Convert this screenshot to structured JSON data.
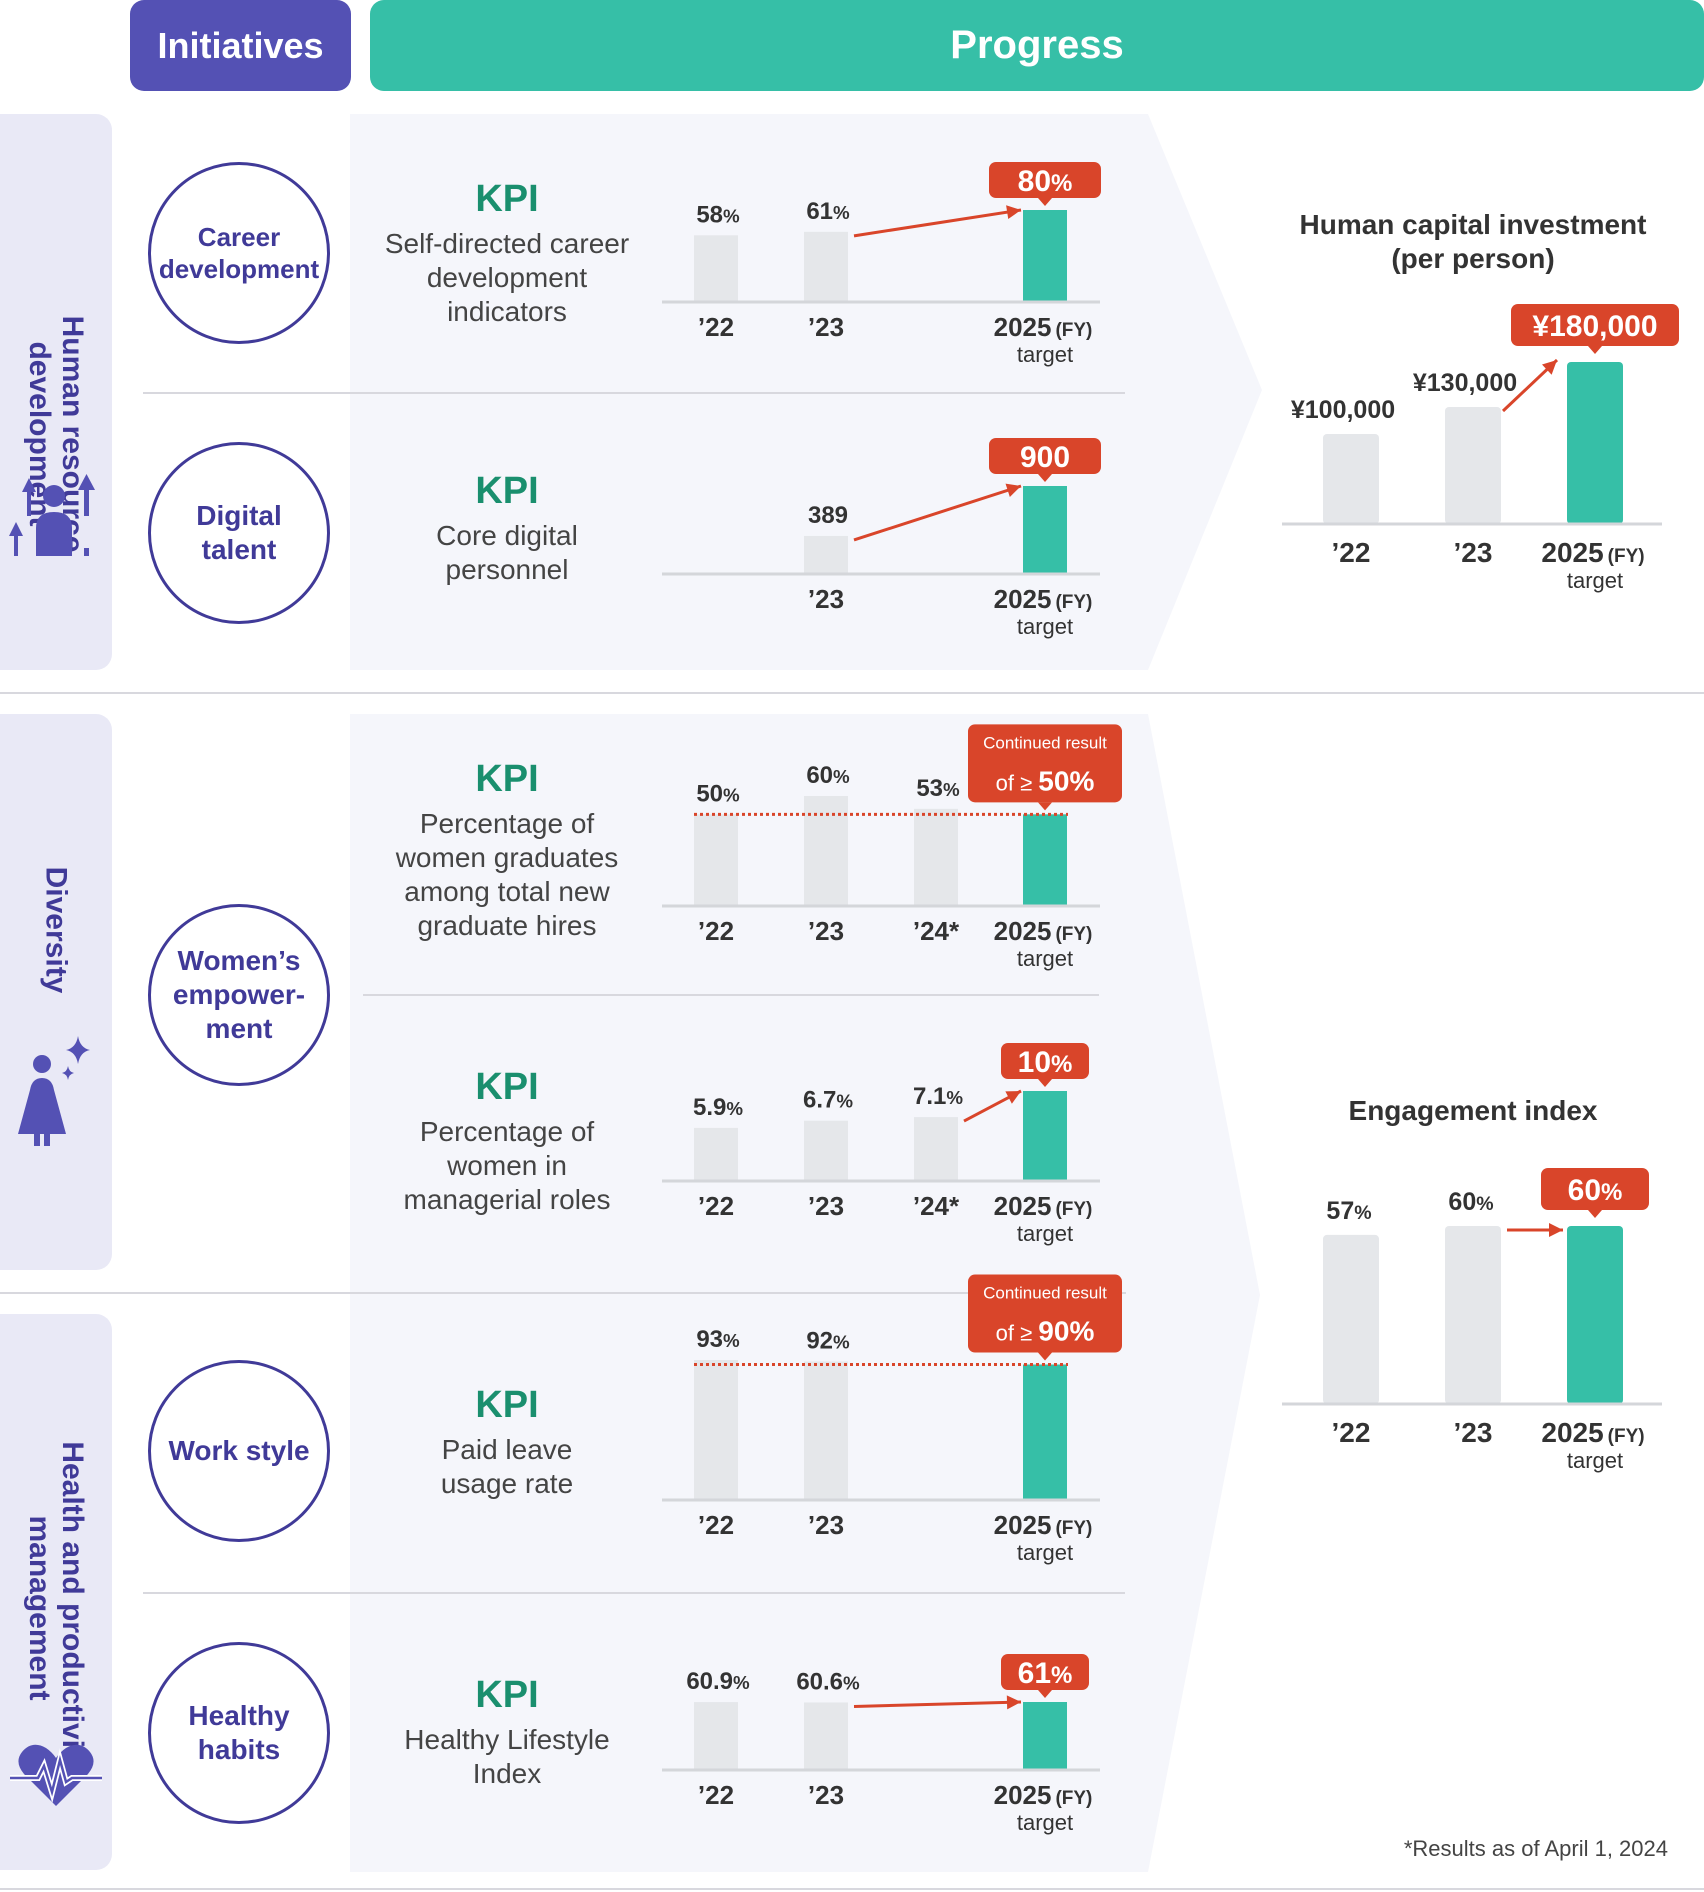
{
  "header": {
    "initiatives": "Initiatives",
    "progress": "Progress"
  },
  "colors": {
    "purple": "#5451b4",
    "teal": "#36bfa7",
    "gray_bar": "#e5e7ea",
    "red": "#d9452a",
    "label_purple": "#403a98",
    "kpi_green": "#1a8f6e"
  },
  "sections": [
    {
      "label": "Human resource\ndevelopment",
      "icon": "person-growth-icon"
    },
    {
      "label": "Diversity",
      "icon": "woman-sparkle-icon"
    },
    {
      "label": "Health and productivity\nmanagement",
      "icon": "heart-pulse-icon"
    }
  ],
  "initiatives": [
    {
      "name": "Career\ndevelopment"
    },
    {
      "name": "Digital\ntalent"
    },
    {
      "name": "Women’s\nempower-\nment"
    },
    {
      "name": "Work style"
    },
    {
      "name": "Healthy\nhabits"
    }
  ],
  "kpis": [
    {
      "title": "KPI",
      "desc": "Self-directed career\ndevelopment\nindicators"
    },
    {
      "title": "KPI",
      "desc": "Core digital\npersonnel"
    },
    {
      "title": "KPI",
      "desc": "Percentage of\nwomen graduates\namong total new\ngraduate hires"
    },
    {
      "title": "KPI",
      "desc": "Percentage of\nwomen in\nmanagerial roles"
    },
    {
      "title": "KPI",
      "desc": "Paid leave\nusage rate"
    },
    {
      "title": "KPI",
      "desc": "Healthy Lifestyle\nIndex"
    }
  ],
  "chart_data": [
    {
      "type": "bar",
      "categories": [
        "’22",
        "’23",
        "2025"
      ],
      "values": [
        58,
        61,
        80
      ],
      "value_labels": [
        "58%",
        "61%",
        "80%"
      ],
      "target_label": "80%",
      "target_note": "target",
      "fy_label": "(FY)",
      "ylim": [
        0,
        100
      ]
    },
    {
      "type": "bar",
      "categories": [
        "’23",
        "2025"
      ],
      "values": [
        389,
        900
      ],
      "value_labels": [
        "389",
        "900"
      ],
      "target_label": "900",
      "target_note": "target",
      "fy_label": "(FY)",
      "ylim": [
        0,
        1200
      ]
    },
    {
      "type": "bar",
      "categories": [
        "’22",
        "’23",
        "’24*",
        "2025"
      ],
      "values": [
        50,
        60,
        53,
        50
      ],
      "value_labels": [
        "50%",
        "60%",
        "53%",
        ""
      ],
      "target_label": "Continued result\nof ≥ 50%",
      "target_note": "target",
      "fy_label": "(FY)",
      "threshold": 50,
      "ylim": [
        0,
        100
      ]
    },
    {
      "type": "bar",
      "categories": [
        "’22",
        "’23",
        "’24*",
        "2025"
      ],
      "values": [
        5.9,
        6.7,
        7.1,
        10
      ],
      "value_labels": [
        "5.9%",
        "6.7%",
        "7.1%",
        "10%"
      ],
      "target_label": "10%",
      "target_note": "target",
      "fy_label": "(FY)",
      "ylim": [
        0,
        12
      ]
    },
    {
      "type": "bar",
      "categories": [
        "’22",
        "’23",
        "2025"
      ],
      "values": [
        93,
        92,
        90
      ],
      "value_labels": [
        "93%",
        "92%",
        ""
      ],
      "target_label": "Continued result\nof ≥ 90%",
      "target_note": "target",
      "fy_label": "(FY)",
      "threshold": 90,
      "ylim": [
        0,
        100
      ]
    },
    {
      "type": "bar",
      "categories": [
        "’22",
        "’23",
        "2025"
      ],
      "values": [
        60.9,
        60.6,
        61
      ],
      "value_labels": [
        "60.9%",
        "60.6%",
        "61%"
      ],
      "target_label": "61%",
      "target_note": "target",
      "fy_label": "(FY)",
      "ylim": [
        0,
        70
      ]
    },
    {
      "type": "bar",
      "title": "Human capital investment\n(per person)",
      "categories": [
        "’22",
        "’23",
        "2025"
      ],
      "values": [
        100000,
        130000,
        180000
      ],
      "value_labels": [
        "¥100,000",
        "¥130,000",
        "¥180,000"
      ],
      "target_label": "¥180,000",
      "target_note": "target",
      "fy_label": "(FY)",
      "ylim": [
        0,
        180000
      ]
    },
    {
      "type": "bar",
      "title": "Engagement index",
      "categories": [
        "’22",
        "’23",
        "2025"
      ],
      "values": [
        57,
        60,
        60
      ],
      "value_labels": [
        "57%",
        "60%",
        "60%"
      ],
      "target_label": "60%",
      "target_note": "target",
      "fy_label": "(FY)",
      "ylim": [
        0,
        60
      ]
    }
  ],
  "footnote": "*Results as of April 1, 2024"
}
